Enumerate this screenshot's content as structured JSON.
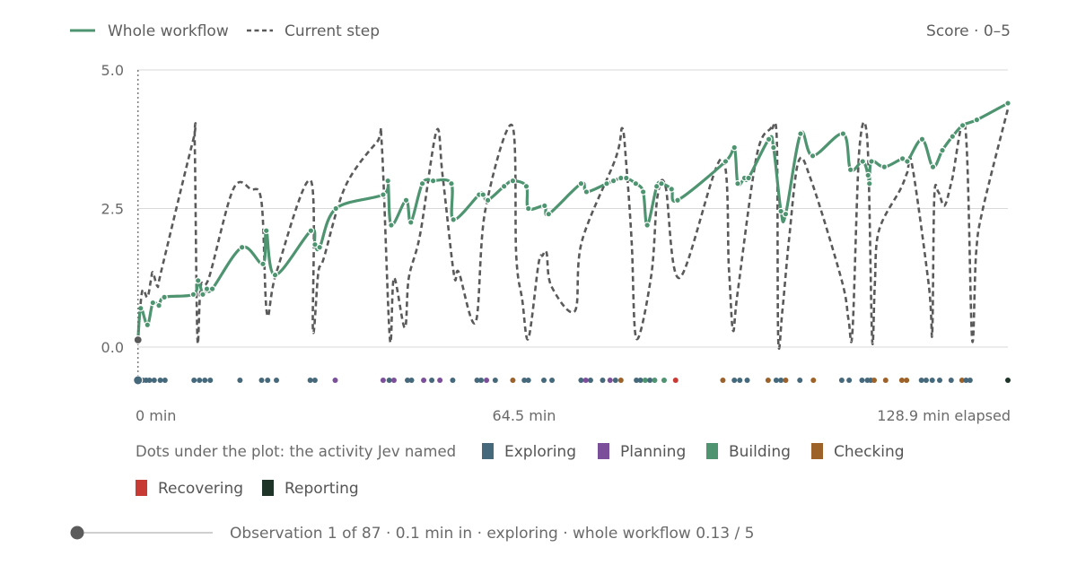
{
  "legend": {
    "whole_label": "Whole workflow",
    "step_label": "Current step",
    "score_label": "Score · 0–5"
  },
  "colors": {
    "whole": "#4e9470",
    "step": "#5a5a5a",
    "grid": "#d9d9d9"
  },
  "x_axis": {
    "start_label": "0 min",
    "mid_label": "64.5 min",
    "end_label": "128.9 min elapsed"
  },
  "activity_legend": {
    "caption": "Dots under the plot: the activity Jev named",
    "items": [
      {
        "name": "Exploring",
        "color": "#46687b"
      },
      {
        "name": "Planning",
        "color": "#7b4f9a"
      },
      {
        "name": "Building",
        "color": "#4e9470"
      },
      {
        "name": "Checking",
        "color": "#9c6229"
      },
      {
        "name": "Recovering",
        "color": "#c83a34"
      },
      {
        "name": "Reporting",
        "color": "#1e3428"
      }
    ]
  },
  "status": {
    "text": "Observation 1 of 87 · 0.1 min in · exploring · whole workflow 0.13 / 5"
  },
  "chart_data": {
    "type": "line",
    "xlim": [
      0,
      128.9
    ],
    "ylim": [
      0,
      5
    ],
    "yticks": [
      0.0,
      2.5,
      5.0
    ],
    "ytick_labels": [
      "0.0",
      "2.5",
      "5.0"
    ],
    "grid": true,
    "legend_position": "top-left",
    "current_observation_x": 0.1,
    "series": [
      {
        "name": "Whole workflow",
        "points": [
          [
            0.1,
            0.13
          ],
          [
            0.5,
            0.7
          ],
          [
            1.5,
            0.4
          ],
          [
            2.3,
            0.8
          ],
          [
            3.2,
            0.75
          ],
          [
            4.0,
            0.9
          ],
          [
            8.3,
            0.95
          ],
          [
            9.0,
            1.2
          ],
          [
            9.7,
            0.95
          ],
          [
            10.3,
            1.05
          ],
          [
            11.1,
            1.05
          ],
          [
            15.5,
            1.8
          ],
          [
            18.6,
            1.5
          ],
          [
            19.1,
            2.1
          ],
          [
            20.4,
            1.3
          ],
          [
            25.7,
            2.1
          ],
          [
            26.3,
            1.85
          ],
          [
            27.0,
            1.8
          ],
          [
            29.4,
            2.5
          ],
          [
            36.4,
            2.75
          ],
          [
            37.1,
            3.0
          ],
          [
            37.6,
            2.2
          ],
          [
            39.8,
            2.65
          ],
          [
            40.5,
            2.25
          ],
          [
            42.2,
            2.95
          ],
          [
            43.8,
            3.0
          ],
          [
            46.5,
            2.95
          ],
          [
            46.8,
            2.3
          ],
          [
            50.6,
            2.75
          ],
          [
            51.2,
            2.75
          ],
          [
            51.9,
            2.65
          ],
          [
            54.3,
            2.9
          ],
          [
            55.6,
            3.0
          ],
          [
            57.6,
            2.9
          ],
          [
            57.9,
            2.5
          ],
          [
            60.3,
            2.55
          ],
          [
            60.9,
            2.4
          ],
          [
            65.7,
            2.95
          ],
          [
            66.5,
            2.8
          ],
          [
            69.5,
            2.95
          ],
          [
            70.5,
            3.0
          ],
          [
            71.6,
            3.05
          ],
          [
            72.4,
            3.05
          ],
          [
            73.8,
            2.95
          ],
          [
            74.9,
            2.8
          ],
          [
            75.5,
            2.2
          ],
          [
            76.9,
            2.9
          ],
          [
            77.6,
            2.95
          ],
          [
            79.1,
            2.85
          ],
          [
            80.0,
            2.65
          ],
          [
            87.1,
            3.35
          ],
          [
            88.4,
            3.6
          ],
          [
            88.9,
            2.95
          ],
          [
            89.9,
            3.05
          ],
          [
            90.5,
            3.05
          ],
          [
            93.5,
            3.75
          ],
          [
            94.2,
            3.6
          ],
          [
            95.3,
            2.45
          ],
          [
            96.0,
            2.4
          ],
          [
            98.2,
            3.85
          ],
          [
            100.0,
            3.45
          ],
          [
            104.5,
            3.85
          ],
          [
            105.6,
            3.2
          ],
          [
            107.4,
            3.35
          ],
          [
            108.2,
            3.1
          ],
          [
            108.4,
            2.95
          ],
          [
            108.7,
            3.35
          ],
          [
            110.6,
            3.25
          ],
          [
            113.3,
            3.4
          ],
          [
            114.0,
            3.35
          ],
          [
            116.2,
            3.75
          ],
          [
            117.8,
            3.25
          ],
          [
            119.2,
            3.55
          ],
          [
            120.7,
            3.8
          ],
          [
            122.2,
            4.0
          ],
          [
            124.3,
            4.1
          ],
          [
            128.9,
            4.4
          ]
        ]
      },
      {
        "name": "Current step",
        "points": [
          [
            0.1,
            0.13
          ],
          [
            0.7,
            1.0
          ],
          [
            1.5,
            0.9
          ],
          [
            2.0,
            1.2
          ],
          [
            2.3,
            1.35
          ],
          [
            3.0,
            1.1
          ],
          [
            3.6,
            1.4
          ],
          [
            8.2,
            3.7
          ],
          [
            8.5,
            3.65
          ],
          [
            8.9,
            0.15
          ],
          [
            9.4,
            1.1
          ],
          [
            10.6,
            1.25
          ],
          [
            14.2,
            2.85
          ],
          [
            16.8,
            2.85
          ],
          [
            18.4,
            2.6
          ],
          [
            19.2,
            0.6
          ],
          [
            20.6,
            1.35
          ],
          [
            25.7,
            3.0
          ],
          [
            26.0,
            0.3
          ],
          [
            26.8,
            1.35
          ],
          [
            27.6,
            1.6
          ],
          [
            30.8,
            2.9
          ],
          [
            35.5,
            3.7
          ],
          [
            36.2,
            3.65
          ],
          [
            37.4,
            0.15
          ],
          [
            38.0,
            1.25
          ],
          [
            39.6,
            0.35
          ],
          [
            40.2,
            1.25
          ],
          [
            41.9,
            2.05
          ],
          [
            44.3,
            3.9
          ],
          [
            45.2,
            3.1
          ],
          [
            46.9,
            1.3
          ],
          [
            47.6,
            1.35
          ],
          [
            50.1,
            0.45
          ],
          [
            51.5,
            2.45
          ],
          [
            55.5,
            4.0
          ],
          [
            56.1,
            1.65
          ],
          [
            57.0,
            0.85
          ],
          [
            57.9,
            0.15
          ],
          [
            59.4,
            1.5
          ],
          [
            60.0,
            1.65
          ],
          [
            60.6,
            1.7
          ],
          [
            61.3,
            1.1
          ],
          [
            64.8,
            0.65
          ],
          [
            65.8,
            1.9
          ],
          [
            70.8,
            3.4
          ],
          [
            71.8,
            3.95
          ],
          [
            72.4,
            3.3
          ],
          [
            73.2,
            1.9
          ],
          [
            73.9,
            0.15
          ],
          [
            76.1,
            1.3
          ],
          [
            77.0,
            2.7
          ],
          [
            78.2,
            2.9
          ],
          [
            80.3,
            1.25
          ],
          [
            86.5,
            3.4
          ],
          [
            87.6,
            1.4
          ],
          [
            88.2,
            0.3
          ],
          [
            88.9,
            1.0
          ],
          [
            91.7,
            3.45
          ],
          [
            93.8,
            3.95
          ],
          [
            94.0,
            3.95
          ],
          [
            94.7,
            3.7
          ],
          [
            94.9,
            0.15
          ],
          [
            95.5,
            0.65
          ],
          [
            96.5,
            1.95
          ],
          [
            97.9,
            3.35
          ],
          [
            99.8,
            3.0
          ],
          [
            104.3,
            1.2
          ],
          [
            105.3,
            0.5
          ],
          [
            105.9,
            0.3
          ],
          [
            106.9,
            3.55
          ],
          [
            108.1,
            3.7
          ],
          [
            108.8,
            0.15
          ],
          [
            109.2,
            1.15
          ],
          [
            109.8,
            2.1
          ],
          [
            113.0,
            2.85
          ],
          [
            114.0,
            3.15
          ],
          [
            114.7,
            3.3
          ],
          [
            117.2,
            1.1
          ],
          [
            117.7,
            0.25
          ],
          [
            118.0,
            2.7
          ],
          [
            118.6,
            2.8
          ],
          [
            119.5,
            2.55
          ],
          [
            120.6,
            3.0
          ],
          [
            122.6,
            3.95
          ],
          [
            123.6,
            0.15
          ],
          [
            124.2,
            1.7
          ],
          [
            125.2,
            2.5
          ],
          [
            128.9,
            4.3
          ]
        ]
      }
    ],
    "activity_dots": [
      {
        "x": 0.1,
        "activity": "exploring"
      },
      {
        "x": 0.4,
        "activity": "exploring"
      },
      {
        "x": 0.8,
        "activity": "exploring"
      },
      {
        "x": 1.3,
        "activity": "exploring"
      },
      {
        "x": 1.8,
        "activity": "exploring"
      },
      {
        "x": 2.5,
        "activity": "exploring"
      },
      {
        "x": 3.4,
        "activity": "exploring"
      },
      {
        "x": 4.1,
        "activity": "exploring"
      },
      {
        "x": 8.4,
        "activity": "exploring"
      },
      {
        "x": 9.2,
        "activity": "exploring"
      },
      {
        "x": 10.0,
        "activity": "exploring"
      },
      {
        "x": 10.8,
        "activity": "exploring"
      },
      {
        "x": 15.2,
        "activity": "exploring"
      },
      {
        "x": 18.4,
        "activity": "exploring"
      },
      {
        "x": 19.3,
        "activity": "exploring"
      },
      {
        "x": 20.6,
        "activity": "exploring"
      },
      {
        "x": 25.6,
        "activity": "exploring"
      },
      {
        "x": 26.3,
        "activity": "exploring"
      },
      {
        "x": 29.3,
        "activity": "planning"
      },
      {
        "x": 36.4,
        "activity": "planning"
      },
      {
        "x": 37.3,
        "activity": "exploring"
      },
      {
        "x": 38.0,
        "activity": "planning"
      },
      {
        "x": 40.0,
        "activity": "exploring"
      },
      {
        "x": 40.6,
        "activity": "exploring"
      },
      {
        "x": 42.4,
        "activity": "planning"
      },
      {
        "x": 43.6,
        "activity": "exploring"
      },
      {
        "x": 44.8,
        "activity": "planning"
      },
      {
        "x": 46.7,
        "activity": "exploring"
      },
      {
        "x": 50.3,
        "activity": "exploring"
      },
      {
        "x": 50.9,
        "activity": "exploring"
      },
      {
        "x": 51.7,
        "activity": "planning"
      },
      {
        "x": 53.0,
        "activity": "exploring"
      },
      {
        "x": 55.6,
        "activity": "checking"
      },
      {
        "x": 57.3,
        "activity": "exploring"
      },
      {
        "x": 57.9,
        "activity": "exploring"
      },
      {
        "x": 60.2,
        "activity": "exploring"
      },
      {
        "x": 61.4,
        "activity": "exploring"
      },
      {
        "x": 65.7,
        "activity": "exploring"
      },
      {
        "x": 66.4,
        "activity": "planning"
      },
      {
        "x": 67.1,
        "activity": "exploring"
      },
      {
        "x": 68.9,
        "activity": "exploring"
      },
      {
        "x": 70.0,
        "activity": "planning"
      },
      {
        "x": 70.8,
        "activity": "exploring"
      },
      {
        "x": 71.6,
        "activity": "checking"
      },
      {
        "x": 73.9,
        "activity": "exploring"
      },
      {
        "x": 74.5,
        "activity": "exploring"
      },
      {
        "x": 75.2,
        "activity": "building"
      },
      {
        "x": 75.9,
        "activity": "exploring"
      },
      {
        "x": 76.6,
        "activity": "building"
      },
      {
        "x": 78.0,
        "activity": "building"
      },
      {
        "x": 79.7,
        "activity": "recovering"
      },
      {
        "x": 86.7,
        "activity": "checking"
      },
      {
        "x": 88.4,
        "activity": "exploring"
      },
      {
        "x": 89.2,
        "activity": "exploring"
      },
      {
        "x": 90.3,
        "activity": "exploring"
      },
      {
        "x": 93.4,
        "activity": "checking"
      },
      {
        "x": 94.6,
        "activity": "exploring"
      },
      {
        "x": 95.3,
        "activity": "exploring"
      },
      {
        "x": 96.0,
        "activity": "checking"
      },
      {
        "x": 98.1,
        "activity": "exploring"
      },
      {
        "x": 100.1,
        "activity": "checking"
      },
      {
        "x": 104.3,
        "activity": "exploring"
      },
      {
        "x": 105.4,
        "activity": "exploring"
      },
      {
        "x": 107.3,
        "activity": "exploring"
      },
      {
        "x": 108.1,
        "activity": "exploring"
      },
      {
        "x": 108.6,
        "activity": "exploring"
      },
      {
        "x": 109.1,
        "activity": "checking"
      },
      {
        "x": 110.8,
        "activity": "checking"
      },
      {
        "x": 113.2,
        "activity": "checking"
      },
      {
        "x": 113.9,
        "activity": "checking"
      },
      {
        "x": 116.1,
        "activity": "exploring"
      },
      {
        "x": 116.8,
        "activity": "exploring"
      },
      {
        "x": 117.7,
        "activity": "exploring"
      },
      {
        "x": 118.8,
        "activity": "exploring"
      },
      {
        "x": 120.5,
        "activity": "exploring"
      },
      {
        "x": 122.1,
        "activity": "checking"
      },
      {
        "x": 122.7,
        "activity": "exploring"
      },
      {
        "x": 123.3,
        "activity": "exploring"
      },
      {
        "x": 128.9,
        "activity": "reporting"
      }
    ]
  }
}
